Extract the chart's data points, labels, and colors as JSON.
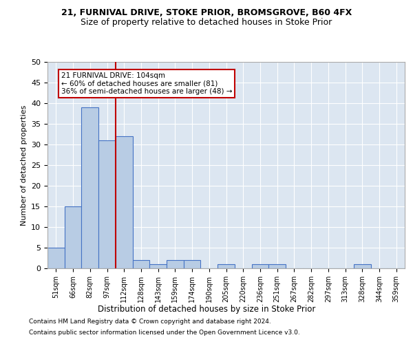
{
  "title1": "21, FURNIVAL DRIVE, STOKE PRIOR, BROMSGROVE, B60 4FX",
  "title2": "Size of property relative to detached houses in Stoke Prior",
  "xlabel": "Distribution of detached houses by size in Stoke Prior",
  "ylabel": "Number of detached properties",
  "categories": [
    "51sqm",
    "66sqm",
    "82sqm",
    "97sqm",
    "112sqm",
    "128sqm",
    "143sqm",
    "159sqm",
    "174sqm",
    "190sqm",
    "205sqm",
    "220sqm",
    "236sqm",
    "251sqm",
    "267sqm",
    "282sqm",
    "297sqm",
    "313sqm",
    "328sqm",
    "344sqm",
    "359sqm"
  ],
  "values": [
    5,
    15,
    39,
    31,
    32,
    2,
    1,
    2,
    2,
    0,
    1,
    0,
    1,
    1,
    0,
    0,
    0,
    0,
    1,
    0,
    0
  ],
  "bar_color": "#b8cce4",
  "bar_edge_color": "#4472c4",
  "vline_x": 3.5,
  "vline_color": "#c00000",
  "annotation_text": "21 FURNIVAL DRIVE: 104sqm\n← 60% of detached houses are smaller (81)\n36% of semi-detached houses are larger (48) →",
  "annotation_box_color": "#ffffff",
  "annotation_box_edge": "#c00000",
  "ylim": [
    0,
    50
  ],
  "yticks": [
    0,
    5,
    10,
    15,
    20,
    25,
    30,
    35,
    40,
    45,
    50
  ],
  "footer_line1": "Contains HM Land Registry data © Crown copyright and database right 2024.",
  "footer_line2": "Contains public sector information licensed under the Open Government Licence v3.0.",
  "fig_bg_color": "#ffffff",
  "plot_bg_color": "#dce6f1",
  "grid_color": "#ffffff"
}
